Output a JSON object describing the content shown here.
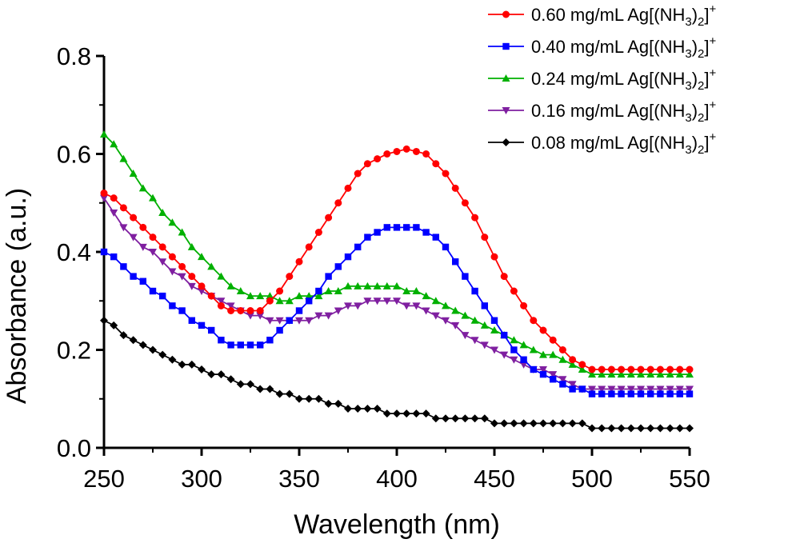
{
  "chart_data": {
    "type": "line",
    "xlabel": "Wavelength (nm)",
    "ylabel": "Absorbance (a.u.)",
    "xlim": [
      250,
      550
    ],
    "ylim": [
      0.0,
      0.8
    ],
    "xticks": [
      250,
      300,
      350,
      400,
      450,
      500,
      550
    ],
    "yticks": [
      0.0,
      0.2,
      0.4,
      0.6,
      0.8
    ],
    "ytick_labels": [
      "0.0",
      "0.2",
      "0.4",
      "0.6",
      "0.8"
    ],
    "x_step": 5,
    "legend_position": "top-right",
    "series": [
      {
        "name": "0.60 mg/mL Ag[(NH3)2]+",
        "label_main": "0.60 mg/mL Ag[(NH",
        "label_sub1": "3",
        "label_mid": ")",
        "label_sub2": "2",
        "label_end": "]",
        "label_sup": "+",
        "color": "#ff0000",
        "marker": "circle",
        "x_start": 250,
        "values": [
          0.52,
          0.51,
          0.49,
          0.47,
          0.45,
          0.43,
          0.41,
          0.39,
          0.37,
          0.35,
          0.33,
          0.31,
          0.29,
          0.28,
          0.28,
          0.28,
          0.28,
          0.3,
          0.32,
          0.35,
          0.38,
          0.41,
          0.44,
          0.47,
          0.5,
          0.53,
          0.56,
          0.58,
          0.59,
          0.6,
          0.605,
          0.61,
          0.605,
          0.6,
          0.58,
          0.56,
          0.53,
          0.5,
          0.47,
          0.43,
          0.39,
          0.35,
          0.32,
          0.29,
          0.26,
          0.24,
          0.22,
          0.2,
          0.18,
          0.17,
          0.16,
          0.16,
          0.16,
          0.16,
          0.16,
          0.16,
          0.16,
          0.16,
          0.16,
          0.16,
          0.16
        ]
      },
      {
        "name": "0.40 mg/mL Ag[(NH3)2]+",
        "label_main": "0.40 mg/mL Ag[(NH",
        "label_sub1": "3",
        "label_mid": ")",
        "label_sub2": "2",
        "label_end": "]",
        "label_sup": "+",
        "color": "#0000ff",
        "marker": "square",
        "x_start": 250,
        "values": [
          0.4,
          0.39,
          0.37,
          0.35,
          0.34,
          0.32,
          0.31,
          0.29,
          0.28,
          0.26,
          0.25,
          0.24,
          0.22,
          0.21,
          0.21,
          0.21,
          0.21,
          0.22,
          0.24,
          0.26,
          0.28,
          0.3,
          0.32,
          0.35,
          0.37,
          0.39,
          0.41,
          0.43,
          0.44,
          0.45,
          0.45,
          0.45,
          0.45,
          0.44,
          0.43,
          0.41,
          0.38,
          0.35,
          0.32,
          0.29,
          0.26,
          0.23,
          0.2,
          0.18,
          0.16,
          0.15,
          0.14,
          0.13,
          0.12,
          0.12,
          0.11,
          0.11,
          0.11,
          0.11,
          0.11,
          0.11,
          0.11,
          0.11,
          0.11,
          0.11,
          0.11
        ]
      },
      {
        "name": "0.24 mg/mL Ag[(NH3)2]+",
        "label_main": "0.24 mg/mL Ag[(NH",
        "label_sub1": "3",
        "label_mid": ")",
        "label_sub2": "2",
        "label_end": "]",
        "label_sup": "+",
        "color": "#00b000",
        "marker": "triangle-up",
        "x_start": 250,
        "values": [
          0.64,
          0.62,
          0.59,
          0.56,
          0.53,
          0.51,
          0.48,
          0.46,
          0.44,
          0.41,
          0.39,
          0.37,
          0.35,
          0.33,
          0.32,
          0.31,
          0.31,
          0.31,
          0.3,
          0.3,
          0.31,
          0.31,
          0.31,
          0.32,
          0.32,
          0.33,
          0.33,
          0.33,
          0.33,
          0.33,
          0.33,
          0.32,
          0.32,
          0.31,
          0.3,
          0.29,
          0.28,
          0.27,
          0.26,
          0.25,
          0.24,
          0.23,
          0.22,
          0.21,
          0.2,
          0.19,
          0.19,
          0.18,
          0.17,
          0.16,
          0.15,
          0.15,
          0.15,
          0.15,
          0.15,
          0.15,
          0.15,
          0.15,
          0.15,
          0.15,
          0.15
        ]
      },
      {
        "name": "0.16 mg/mL Ag[(NH3)2]+",
        "label_main": "0.16 mg/mL Ag[(NH",
        "label_sub1": "3",
        "label_mid": ")",
        "label_sub2": "2",
        "label_end": "]",
        "label_sup": "+",
        "color": "#7f1fa0",
        "marker": "triangle-down",
        "x_start": 250,
        "values": [
          0.51,
          0.48,
          0.45,
          0.43,
          0.41,
          0.4,
          0.38,
          0.36,
          0.35,
          0.33,
          0.32,
          0.31,
          0.3,
          0.29,
          0.28,
          0.27,
          0.27,
          0.26,
          0.26,
          0.26,
          0.26,
          0.26,
          0.27,
          0.27,
          0.28,
          0.29,
          0.29,
          0.3,
          0.3,
          0.3,
          0.3,
          0.29,
          0.29,
          0.28,
          0.27,
          0.26,
          0.25,
          0.23,
          0.22,
          0.21,
          0.2,
          0.19,
          0.18,
          0.17,
          0.16,
          0.16,
          0.15,
          0.14,
          0.13,
          0.12,
          0.12,
          0.12,
          0.12,
          0.12,
          0.12,
          0.12,
          0.12,
          0.12,
          0.12,
          0.12,
          0.12
        ]
      },
      {
        "name": "0.08 mg/mL Ag[(NH3)2]+",
        "label_main": "0.08 mg/mL Ag[(NH",
        "label_sub1": "3",
        "label_mid": ")",
        "label_sub2": "2",
        "label_end": "]",
        "label_sup": "+",
        "color": "#000000",
        "marker": "diamond",
        "x_start": 250,
        "values": [
          0.26,
          0.25,
          0.23,
          0.22,
          0.21,
          0.2,
          0.19,
          0.18,
          0.17,
          0.17,
          0.16,
          0.15,
          0.15,
          0.14,
          0.13,
          0.13,
          0.12,
          0.12,
          0.11,
          0.11,
          0.1,
          0.1,
          0.1,
          0.09,
          0.09,
          0.08,
          0.08,
          0.08,
          0.08,
          0.07,
          0.07,
          0.07,
          0.07,
          0.07,
          0.06,
          0.06,
          0.06,
          0.06,
          0.06,
          0.06,
          0.05,
          0.05,
          0.05,
          0.05,
          0.05,
          0.05,
          0.05,
          0.05,
          0.05,
          0.05,
          0.04,
          0.04,
          0.04,
          0.04,
          0.04,
          0.04,
          0.04,
          0.04,
          0.04,
          0.04,
          0.04
        ]
      }
    ]
  }
}
